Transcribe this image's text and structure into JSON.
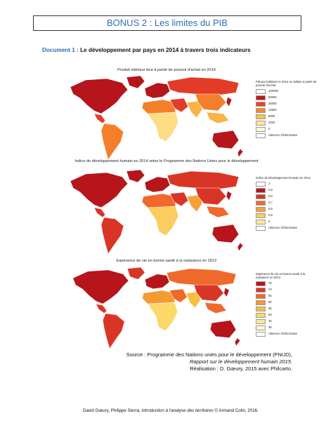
{
  "header": {
    "title": "BONUS 2 : Les limites du PIB"
  },
  "document": {
    "label": "Document 1 :",
    "title": "Le développement par pays en 2014 à travers trois indicateurs"
  },
  "maps": [
    {
      "title": "Produit intérieur brut à parité de pouvoir d'achat en 2014",
      "legend_title": "PIB par habitant en 2014 en dollars à parité de pouvoir d'achat",
      "classes": [
        {
          "label": "100000",
          "color": "#ffffff"
        },
        {
          "label": "50000",
          "color": "#c0191d"
        },
        {
          "label": "25000",
          "color": "#e8432a"
        },
        {
          "label": "12500",
          "color": "#f58a2b"
        },
        {
          "label": "5000",
          "color": "#f8c24a"
        },
        {
          "label": "2020",
          "color": "#fde89a"
        },
        {
          "label": "0",
          "color": "#fff7cf"
        },
        {
          "label": "Absence d'information",
          "color": "#ffffff"
        }
      ],
      "palette": [
        "#b5151b",
        "#e23c29",
        "#f37f2a",
        "#f9b445",
        "#fddc86"
      ]
    },
    {
      "title": "Indice de développement humain en 2014 selon le Programme des Nations Unies pour le développement",
      "legend_title": "Indice de développement humain en 2014",
      "classes": [
        {
          "label": "1",
          "color": "#ffffff"
        },
        {
          "label": "0.9",
          "color": "#b5151b"
        },
        {
          "label": "0.8",
          "color": "#d93527"
        },
        {
          "label": "0.7",
          "color": "#f0692b"
        },
        {
          "label": "0.6",
          "color": "#f7a03a"
        },
        {
          "label": "0.5",
          "color": "#fbcc5e"
        },
        {
          "label": "0",
          "color": "#fde7a2"
        },
        {
          "label": "Absence d'information",
          "color": "#ffffff"
        }
      ],
      "palette": [
        "#b5151b",
        "#d93527",
        "#f0692b",
        "#f7a03a",
        "#fbcc5e"
      ]
    },
    {
      "title": "Espérance de vie en bonne santé à la naissance en 2013",
      "legend_title": "Espérance de vie en bonne santé à la naissance en 2013",
      "classes": [
        {
          "label": "75",
          "color": "#b5151b"
        },
        {
          "label": "70",
          "color": "#d93527"
        },
        {
          "label": "65",
          "color": "#ef6a2a"
        },
        {
          "label": "60",
          "color": "#f39b33"
        },
        {
          "label": "55",
          "color": "#f8bf45"
        },
        {
          "label": "50",
          "color": "#fcd86a"
        },
        {
          "label": "45",
          "color": "#fde89a"
        },
        {
          "label": "35",
          "color": "#fff7cf"
        },
        {
          "label": "Absence d'information",
          "color": "#ffffff"
        }
      ],
      "palette": [
        "#b5151b",
        "#d93527",
        "#ef6a2a",
        "#f39b33",
        "#f8bf45",
        "#fcd86a"
      ]
    }
  ],
  "source": {
    "line1": "Source : Programme des Nations unies pour le développement (PNUD),",
    "line2": "Rapport sur le développement humain 2015.",
    "line3": "Réalisation : D. Gœury, 2015 avec Philcarto."
  },
  "footer": {
    "authors": "David Gœury, Philippe Sierra,",
    "book": "Introduction à l'analyse des territoires",
    "publisher": "© Armand Colin, 2016."
  }
}
